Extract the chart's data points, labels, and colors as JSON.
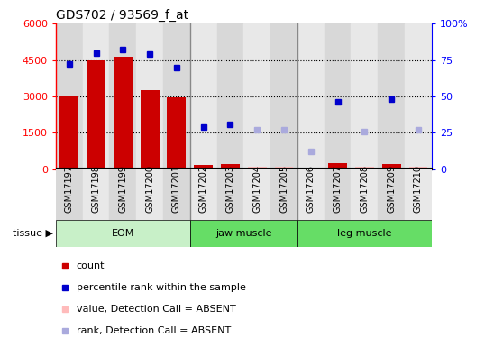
{
  "title": "GDS702 / 93569_f_at",
  "samples": [
    "GSM17197",
    "GSM17198",
    "GSM17199",
    "GSM17200",
    "GSM17201",
    "GSM17202",
    "GSM17203",
    "GSM17204",
    "GSM17205",
    "GSM17206",
    "GSM17207",
    "GSM17208",
    "GSM17209",
    "GSM17210"
  ],
  "count_values": [
    3050,
    4500,
    4650,
    3250,
    2950,
    150,
    220,
    null,
    null,
    null,
    250,
    null,
    220,
    null
  ],
  "rank_values": [
    72,
    80,
    82,
    79,
    70,
    29,
    31,
    null,
    null,
    null,
    46,
    null,
    48,
    null
  ],
  "count_absent": [
    null,
    null,
    null,
    null,
    null,
    null,
    null,
    80,
    90,
    30,
    null,
    100,
    null,
    100
  ],
  "rank_absent": [
    null,
    null,
    null,
    null,
    null,
    null,
    null,
    27,
    27,
    12,
    null,
    26,
    null,
    27
  ],
  "group_ranges": [
    [
      0,
      4,
      "EOM"
    ],
    [
      5,
      8,
      "jaw muscle"
    ],
    [
      9,
      13,
      "leg muscle"
    ]
  ],
  "group_colors": [
    "#c8f0c8",
    "#88dd88",
    "#88dd88"
  ],
  "ylim_left": [
    0,
    6000
  ],
  "ylim_right": [
    0,
    100
  ],
  "yticks_left": [
    0,
    1500,
    3000,
    4500,
    6000
  ],
  "yticks_right": [
    0,
    25,
    50,
    75,
    100
  ],
  "bar_color_present": "#cc0000",
  "bar_color_absent": "#ffbbbb",
  "dot_color_present": "#0000cc",
  "dot_color_absent": "#aaaadd",
  "col_bg_even": "#d8d8d8",
  "col_bg_odd": "#e8e8e8",
  "separator_color": "#888888",
  "grid_dotted_color": "#000000",
  "legend_items": [
    {
      "color": "#cc0000",
      "marker": "s",
      "label": "count"
    },
    {
      "color": "#0000cc",
      "marker": "s",
      "label": "percentile rank within the sample"
    },
    {
      "color": "#ffbbbb",
      "marker": "s",
      "label": "value, Detection Call = ABSENT"
    },
    {
      "color": "#aaaadd",
      "marker": "s",
      "label": "rank, Detection Call = ABSENT"
    }
  ]
}
